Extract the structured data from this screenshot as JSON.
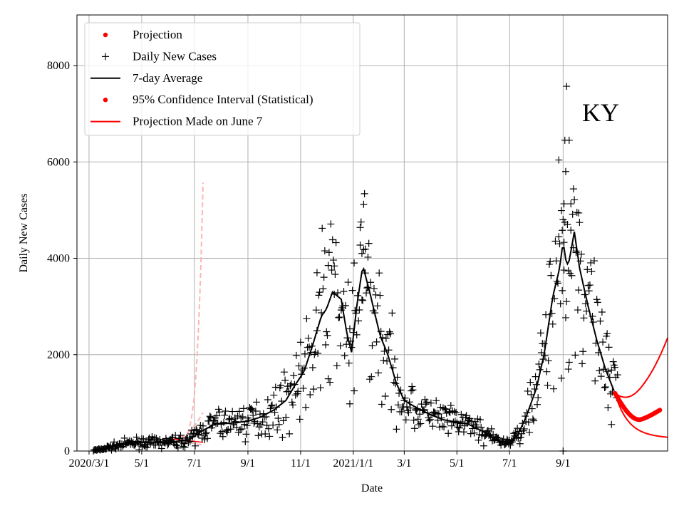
{
  "chart_data": {
    "type": "scatter",
    "title": "",
    "annotation": "KY",
    "xlabel": "Date",
    "ylabel": "Daily New Cases",
    "x_axis": {
      "start": "2020-02-16",
      "end": "2021-12-31",
      "ticks": [
        {
          "date": "2020-03-01",
          "label": "2020/3/1"
        },
        {
          "date": "2020-05-01",
          "label": "5/1"
        },
        {
          "date": "2020-07-01",
          "label": "7/1"
        },
        {
          "date": "2020-09-01",
          "label": "9/1"
        },
        {
          "date": "2020-11-01",
          "label": "11/1"
        },
        {
          "date": "2021-01-01",
          "label": "2021/1/1"
        },
        {
          "date": "2021-03-01",
          "label": "3/1"
        },
        {
          "date": "2021-05-01",
          "label": "5/1"
        },
        {
          "date": "2021-07-01",
          "label": "7/1"
        },
        {
          "date": "2021-09-01",
          "label": "9/1"
        }
      ]
    },
    "y_axis": {
      "ylim": [
        0,
        9050
      ],
      "ticks": [
        0,
        2000,
        4000,
        6000,
        8000
      ],
      "tick_labels": [
        "0",
        "2000",
        "4000",
        "6000",
        "8000"
      ]
    },
    "grid": true,
    "legend": {
      "position": "top-left",
      "entries": [
        {
          "label": "Projection",
          "marker": "dot",
          "color": "#ff0000"
        },
        {
          "label": "Daily New Cases",
          "marker": "plus",
          "color": "#000000"
        },
        {
          "label": "7-day Average",
          "marker": "line",
          "color": "#000000"
        },
        {
          "label": "95% Confidence Interval (Statistical)",
          "marker": "dot",
          "color": "#ff0000"
        },
        {
          "label": "Projection Made on June 7",
          "marker": "line",
          "color": "#ff0000"
        }
      ]
    },
    "average_anchors": [
      [
        "2020-03-05",
        0
      ],
      [
        "2020-03-20",
        60
      ],
      [
        "2020-04-10",
        140
      ],
      [
        "2020-05-01",
        180
      ],
      [
        "2020-05-20",
        170
      ],
      [
        "2020-06-10",
        200
      ],
      [
        "2020-06-25",
        230
      ],
      [
        "2020-07-10",
        420
      ],
      [
        "2020-07-25",
        560
      ],
      [
        "2020-08-15",
        580
      ],
      [
        "2020-09-01",
        620
      ],
      [
        "2020-09-15",
        700
      ],
      [
        "2020-10-01",
        850
      ],
      [
        "2020-10-15",
        1050
      ],
      [
        "2020-10-25",
        1350
      ],
      [
        "2020-11-05",
        1650
      ],
      [
        "2020-11-15",
        2200
      ],
      [
        "2020-11-25",
        2800
      ],
      [
        "2020-12-01",
        2950
      ],
      [
        "2020-12-08",
        3300
      ],
      [
        "2020-12-18",
        3150
      ],
      [
        "2020-12-25",
        2400
      ],
      [
        "2020-12-30",
        2050
      ],
      [
        "2021-01-05",
        3000
      ],
      [
        "2021-01-12",
        3850
      ],
      [
        "2021-01-20",
        3300
      ],
      [
        "2021-02-01",
        2400
      ],
      [
        "2021-02-10",
        2000
      ],
      [
        "2021-02-20",
        1400
      ],
      [
        "2021-03-01",
        1050
      ],
      [
        "2021-03-15",
        900
      ],
      [
        "2021-04-01",
        750
      ],
      [
        "2021-04-15",
        650
      ],
      [
        "2021-05-01",
        600
      ],
      [
        "2021-05-15",
        550
      ],
      [
        "2021-06-01",
        400
      ],
      [
        "2021-06-15",
        220
      ],
      [
        "2021-07-01",
        180
      ],
      [
        "2021-07-10",
        320
      ],
      [
        "2021-07-20",
        700
      ],
      [
        "2021-08-01",
        1300
      ],
      [
        "2021-08-10",
        2000
      ],
      [
        "2021-08-20",
        3200
      ],
      [
        "2021-08-28",
        3800
      ],
      [
        "2021-09-01",
        4350
      ],
      [
        "2021-09-05",
        3850
      ],
      [
        "2021-09-08",
        3950
      ],
      [
        "2021-09-14",
        4550
      ],
      [
        "2021-09-20",
        3800
      ],
      [
        "2021-09-30",
        3000
      ],
      [
        "2021-10-10",
        2300
      ],
      [
        "2021-10-20",
        1700
      ],
      [
        "2021-10-31",
        1200
      ]
    ],
    "daily_scatter": {
      "start": "2020-03-06",
      "end": "2021-11-03",
      "seed": 7,
      "noise": 0.28
    },
    "daily_highlights": [
      [
        "2021-09-05",
        7570
      ],
      [
        "2021-09-03",
        6450
      ],
      [
        "2021-09-08",
        6450
      ],
      [
        "2021-08-27",
        6040
      ],
      [
        "2021-09-04",
        5800
      ],
      [
        "2021-09-13",
        5440
      ],
      [
        "2021-09-02",
        5130
      ],
      [
        "2021-09-10",
        5130
      ],
      [
        "2021-01-13",
        5120
      ],
      [
        "2021-08-30",
        4990
      ],
      [
        "2021-09-19",
        4940
      ],
      [
        "2021-01-09",
        4640
      ],
      [
        "2021-01-15",
        4190
      ],
      [
        "2021-08-31",
        4580
      ],
      [
        "2021-09-02",
        4330
      ],
      [
        "2021-09-16",
        4150
      ],
      [
        "2020-12-03",
        3850
      ],
      [
        "2020-12-10",
        3840
      ],
      [
        "2021-01-11",
        4100
      ],
      [
        "2021-01-18",
        3400
      ],
      [
        "2020-11-20",
        3700
      ],
      [
        "2021-09-07",
        1700
      ],
      [
        "2021-09-01",
        0
      ],
      [
        "2021-10-23",
        900
      ],
      [
        "2021-10-27",
        550
      ],
      [
        "2020-12-28",
        980
      ],
      [
        "2021-01-02",
        1250
      ]
    ],
    "ci_june": {
      "start": "2020-06-07",
      "end": "2020-07-11",
      "base": 250,
      "upper_end": 5570,
      "lower_end": 120,
      "mid_end": 800
    },
    "projection": {
      "start": "2021-10-31",
      "end": "2021-12-31",
      "start_value": 1200,
      "upper_end": 2350,
      "lower_end": 300,
      "markers_end": "2021-12-22",
      "markers_end_value": 850,
      "min_value": 650
    }
  },
  "colors": {
    "grid": "#b0b0b0",
    "black": "#000000",
    "red": "#ff0000",
    "pink": "#ffb3b3"
  }
}
